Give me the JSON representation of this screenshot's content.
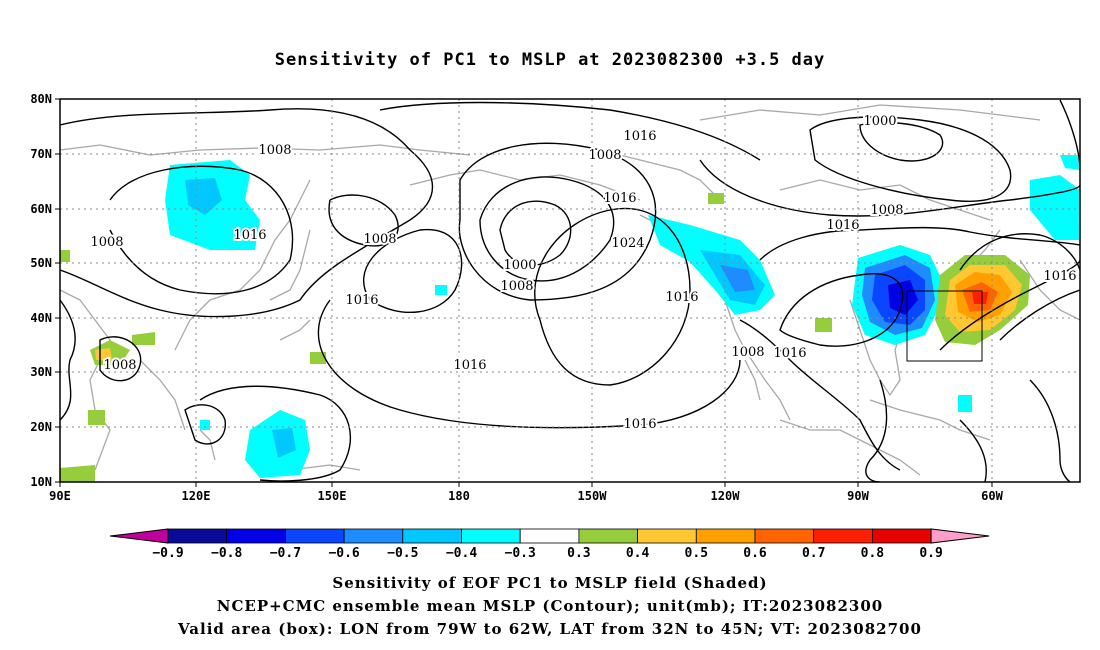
{
  "title": "Sensitivity of PC1 to MSLP at 2023082300 +3.5 day",
  "lat_labels": [
    "80N",
    "70N",
    "60N",
    "50N",
    "40N",
    "30N",
    "20N",
    "10N"
  ],
  "lon_labels": [
    "90E",
    "120E",
    "150E",
    "180",
    "150W",
    "120W",
    "90W",
    "60W"
  ],
  "contour_labels": [
    {
      "text": "1008",
      "id": "c1"
    },
    {
      "text": "1008",
      "id": "c2"
    },
    {
      "text": "1016",
      "id": "c3"
    },
    {
      "text": "1008",
      "id": "c4"
    },
    {
      "text": "1016",
      "id": "c5"
    },
    {
      "text": "1016",
      "id": "c6"
    },
    {
      "text": "1008",
      "id": "c7"
    },
    {
      "text": "1016",
      "id": "c8"
    },
    {
      "text": "1000",
      "id": "c9"
    },
    {
      "text": "1008",
      "id": "c10"
    },
    {
      "text": "1024",
      "id": "c11"
    },
    {
      "text": "1016",
      "id": "c12"
    },
    {
      "text": "1016",
      "id": "c13"
    },
    {
      "text": "1016",
      "id": "c14"
    },
    {
      "text": "1008",
      "id": "c15"
    },
    {
      "text": "1016",
      "id": "c16"
    },
    {
      "text": "1000",
      "id": "c17"
    },
    {
      "text": "1008",
      "id": "c18"
    },
    {
      "text": "1016",
      "id": "c19"
    },
    {
      "text": "1016",
      "id": "c20"
    },
    {
      "text": "1008",
      "id": "c21"
    }
  ],
  "colorbar": {
    "labels": [
      "−0.9",
      "−0.8",
      "−0.7",
      "−0.6",
      "−0.5",
      "−0.4",
      "−0.3",
      "0.3",
      "0.4",
      "0.5",
      "0.6",
      "0.7",
      "0.8",
      "0.9"
    ],
    "colors": [
      "#0a0a9a",
      "#0000e6",
      "#0a46ff",
      "#1e8cff",
      "#00c8ff",
      "#00ffff",
      "#ffffff",
      "#96cd3c",
      "#ffc832",
      "#ffa000",
      "#ff6400",
      "#ff1e00",
      "#e60000"
    ],
    "end_low_color": "#c0009a",
    "end_high_color": "#ff9ec8"
  },
  "captions": {
    "line1": "Sensitivity of EOF PC1 to MSLP field (Shaded)",
    "line2": "NCEP+CMC ensemble mean MSLP (Contour); unit(mb); IT:2023082300",
    "line3": "Valid area (box): LON from 79W to 62W, LAT from 32N to 45N; VT: 2023082700"
  }
}
